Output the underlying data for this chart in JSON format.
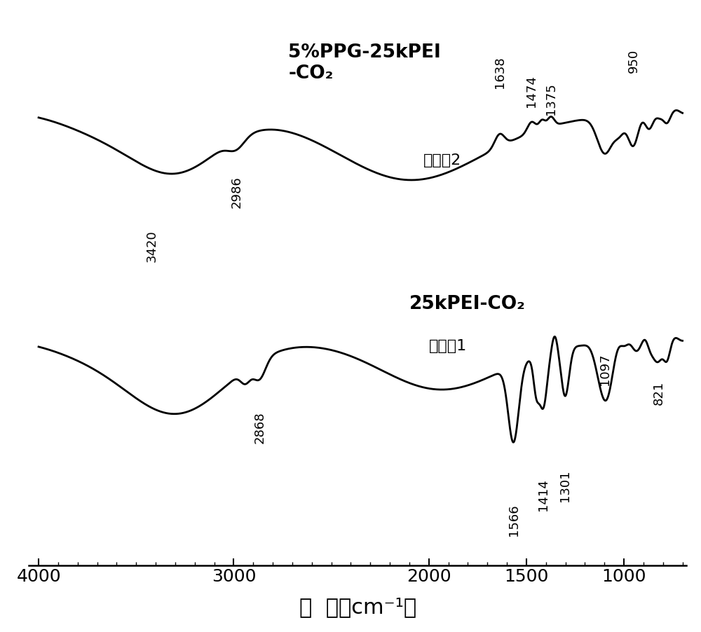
{
  "xlabel": "波  数（cm⁻¹）",
  "xticks": [
    4000,
    3000,
    2000,
    1500,
    1000
  ],
  "background_color": "#ffffff",
  "line_color": "#000000",
  "linewidth": 2.0,
  "label1": "5%PPG-25kPEI\n-CO₂",
  "label2": "25kPEI-CO₂",
  "sublabel1": "实施例2",
  "sublabel2": "实施例1",
  "peak_labels_top": [
    "3420",
    "2986",
    "1638",
    "1474",
    "1375",
    "950"
  ],
  "peak_labels_bottom": [
    "2868",
    "1566",
    "1414",
    "1301",
    "1097",
    "821"
  ]
}
